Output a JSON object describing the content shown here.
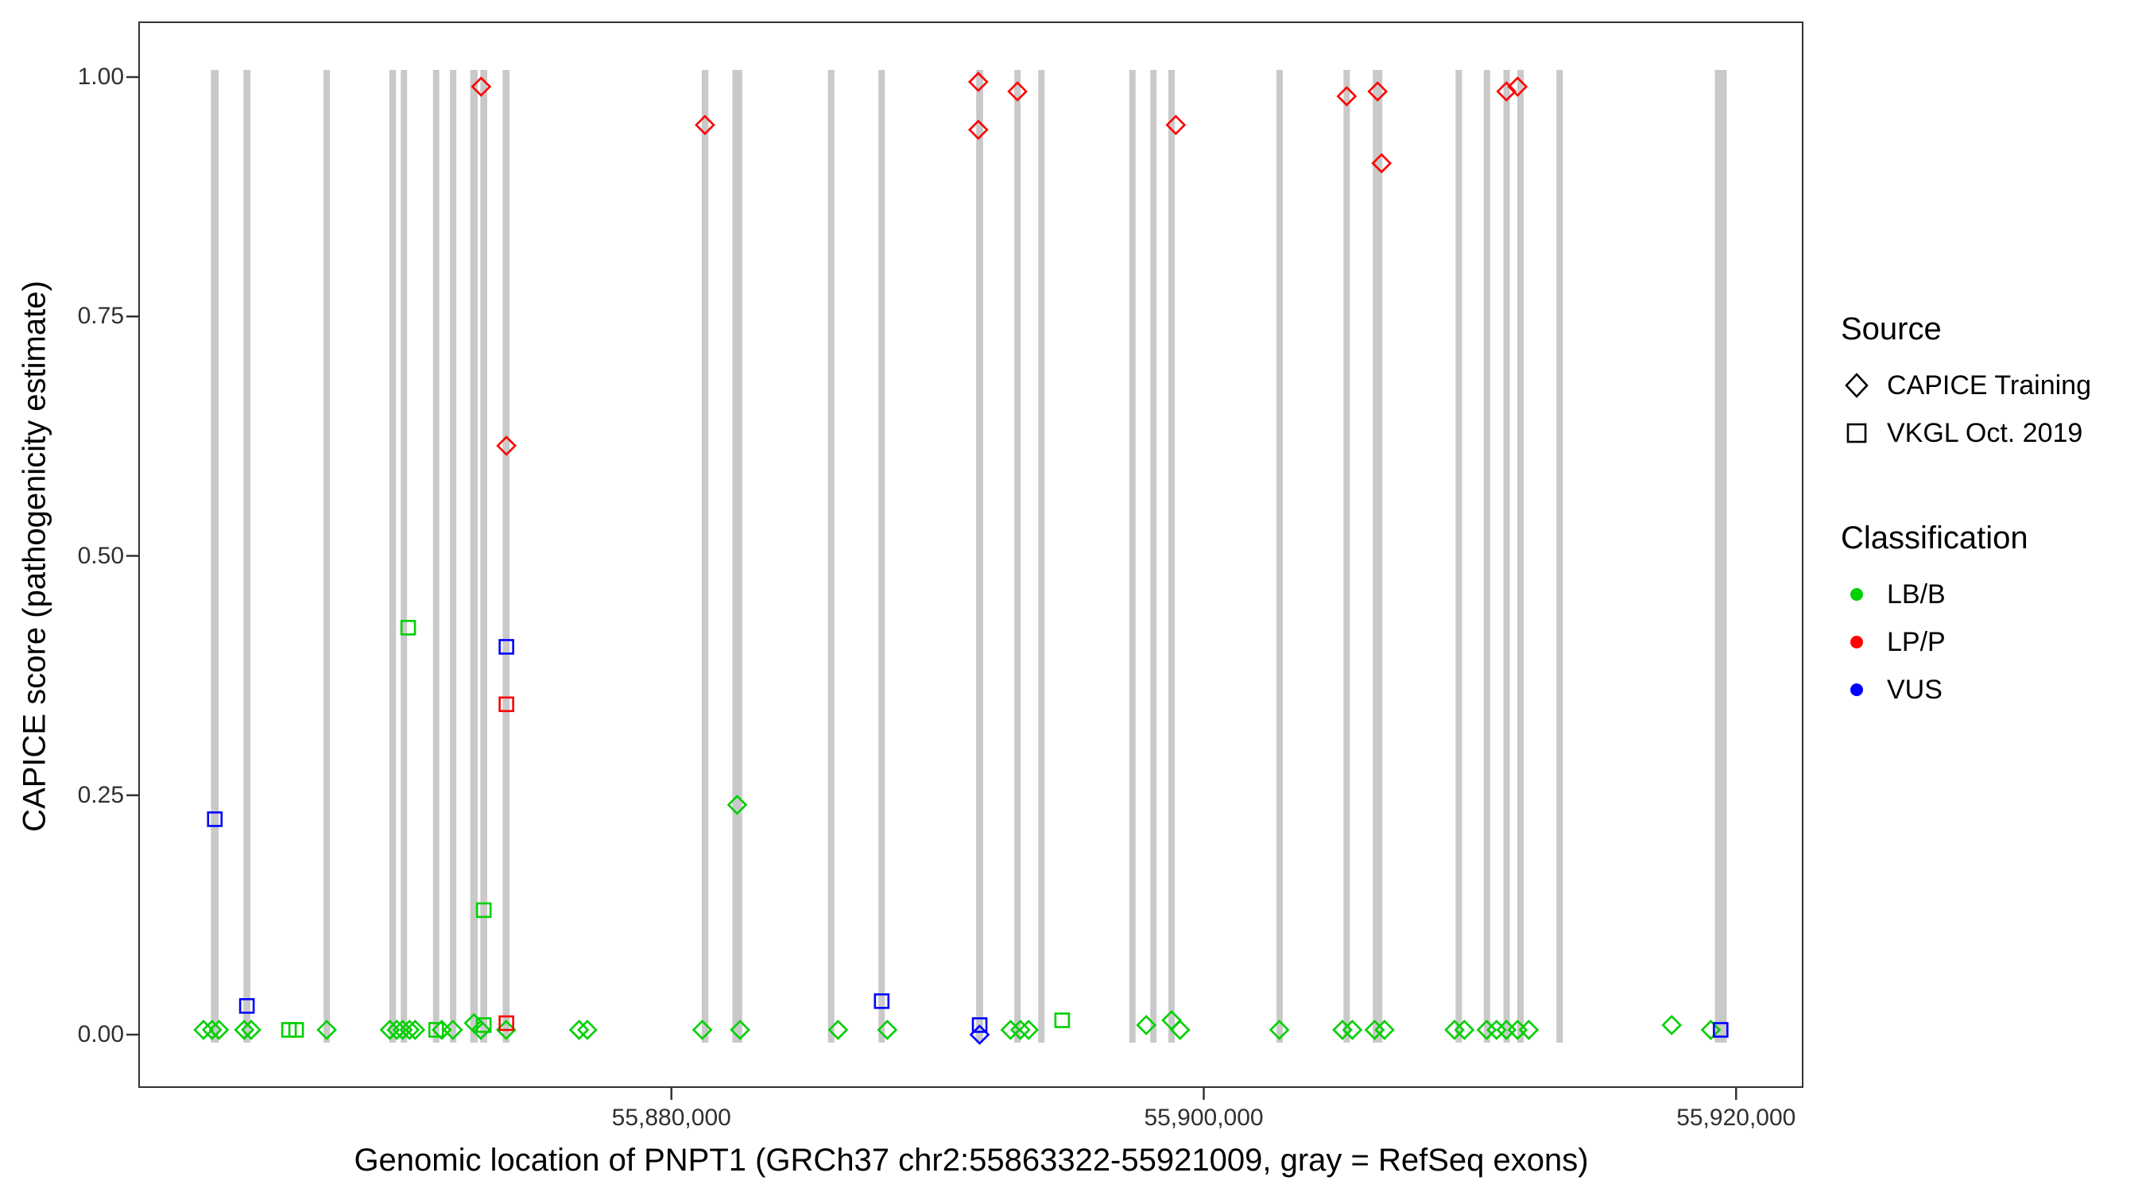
{
  "chart_data": {
    "type": "scatter",
    "title": "",
    "xlabel": "Genomic location of PNPT1 (GRCh37 chr2:55863322-55921009, gray = RefSeq exons)",
    "ylabel": "CAPICE score (pathogenicity estimate)",
    "xlim": [
      55860000,
      55922500
    ],
    "ylim": [
      0,
      1
    ],
    "grid": "off",
    "legend_position": "right",
    "x_ticks": {
      "values": [
        55880000,
        55900000,
        55920000
      ],
      "labels": [
        "55,880,000",
        "55,900,000",
        "55,920,000"
      ]
    },
    "y_ticks": {
      "values": [
        1.0,
        0.75,
        0.5,
        0.25,
        0.0
      ],
      "labels": [
        "1.00",
        "0.75",
        "0.50",
        "0.25",
        "0.00"
      ]
    },
    "colors": {
      "LB/B": "#00D000",
      "LP/P": "#FF0000",
      "VUS": "#0000FF",
      "exon": "#C9C9C9"
    },
    "legend": {
      "source": {
        "title": "Source",
        "items": [
          {
            "label": "CAPICE Training",
            "shape": "diamond"
          },
          {
            "label": "VKGL Oct. 2019",
            "shape": "square"
          }
        ]
      },
      "classification": {
        "title": "Classification",
        "items": [
          {
            "label": "LB/B",
            "color": "#00D000"
          },
          {
            "label": "LP/P",
            "color": "#FF0000"
          },
          {
            "label": "VUS",
            "color": "#0000FF"
          }
        ]
      }
    },
    "exons": [
      [
        55862700,
        55862990
      ],
      [
        55863920,
        55864180
      ],
      [
        55866930,
        55867170
      ],
      [
        55869400,
        55869650
      ],
      [
        55869830,
        55870060
      ],
      [
        55871040,
        55871270
      ],
      [
        55871680,
        55871900
      ],
      [
        55872440,
        55872720
      ],
      [
        55872820,
        55873080
      ],
      [
        55873660,
        55873920
      ],
      [
        55881140,
        55881390
      ],
      [
        55882290,
        55882660
      ],
      [
        55885880,
        55886120
      ],
      [
        55887780,
        55888010
      ],
      [
        55891450,
        55891710
      ],
      [
        55892880,
        55893120
      ],
      [
        55893780,
        55894010
      ],
      [
        55897200,
        55897430
      ],
      [
        55897990,
        55898220
      ],
      [
        55898670,
        55898910
      ],
      [
        55902730,
        55902960
      ],
      [
        55905250,
        55905490
      ],
      [
        55906350,
        55906710
      ],
      [
        55909460,
        55909700
      ],
      [
        55910520,
        55910750
      ],
      [
        55911260,
        55911480
      ],
      [
        55911780,
        55912010
      ],
      [
        55913250,
        55913490
      ],
      [
        55919200,
        55919650
      ]
    ],
    "series": [
      {
        "name": "CAPICE Training / LB/B",
        "source": "CAPICE Training",
        "classification": "LB/B",
        "shape": "diamond",
        "points": [
          [
            55862420,
            0.005
          ],
          [
            55862740,
            0.005
          ],
          [
            55863000,
            0.005
          ],
          [
            55863950,
            0.005
          ],
          [
            55864210,
            0.005
          ],
          [
            55867050,
            0.005
          ],
          [
            55869420,
            0.005
          ],
          [
            55869680,
            0.005
          ],
          [
            55869900,
            0.005
          ],
          [
            55870160,
            0.005
          ],
          [
            55870370,
            0.005
          ],
          [
            55871370,
            0.005
          ],
          [
            55871790,
            0.005
          ],
          [
            55872580,
            0.012
          ],
          [
            55872840,
            0.005
          ],
          [
            55873790,
            0.005
          ],
          [
            55876530,
            0.005
          ],
          [
            55876840,
            0.005
          ],
          [
            55881160,
            0.005
          ],
          [
            55882470,
            0.24
          ],
          [
            55882580,
            0.005
          ],
          [
            55886260,
            0.005
          ],
          [
            55888110,
            0.005
          ],
          [
            55892740,
            0.005
          ],
          [
            55893110,
            0.005
          ],
          [
            55893420,
            0.005
          ],
          [
            55897840,
            0.01
          ],
          [
            55898790,
            0.015
          ],
          [
            55899110,
            0.005
          ],
          [
            55902840,
            0.005
          ],
          [
            55905210,
            0.005
          ],
          [
            55905580,
            0.005
          ],
          [
            55906420,
            0.005
          ],
          [
            55906790,
            0.005
          ],
          [
            55909420,
            0.005
          ],
          [
            55909790,
            0.005
          ],
          [
            55910630,
            0.005
          ],
          [
            55911000,
            0.005
          ],
          [
            55911370,
            0.005
          ],
          [
            55911790,
            0.005
          ],
          [
            55912210,
            0.005
          ],
          [
            55917580,
            0.01
          ],
          [
            55919050,
            0.005
          ]
        ]
      },
      {
        "name": "VKGL Oct. 2019 / LB/B",
        "source": "VKGL Oct. 2019",
        "classification": "LB/B",
        "shape": "square",
        "points": [
          [
            55870110,
            0.425
          ],
          [
            55872950,
            0.13
          ],
          [
            55865630,
            0.005
          ],
          [
            55865900,
            0.005
          ],
          [
            55871160,
            0.005
          ],
          [
            55872950,
            0.01
          ],
          [
            55894680,
            0.015
          ]
        ]
      },
      {
        "name": "CAPICE Training / VUS",
        "source": "CAPICE Training",
        "classification": "VUS",
        "shape": "diamond",
        "points": [
          [
            55891580,
            0.0
          ]
        ]
      },
      {
        "name": "VKGL Oct. 2019 / VUS",
        "source": "VKGL Oct. 2019",
        "classification": "VUS",
        "shape": "square",
        "points": [
          [
            55862845,
            0.225
          ],
          [
            55864050,
            0.03
          ],
          [
            55873800,
            0.405
          ],
          [
            55887900,
            0.035
          ],
          [
            55891580,
            0.01
          ],
          [
            55919420,
            0.005
          ]
        ]
      },
      {
        "name": "VKGL Oct. 2019 / LP/P",
        "source": "VKGL Oct. 2019",
        "classification": "LP/P",
        "shape": "square",
        "points": [
          [
            55873800,
            0.345
          ],
          [
            55873800,
            0.012
          ]
        ]
      },
      {
        "name": "CAPICE Training / LP/P",
        "source": "CAPICE Training",
        "classification": "LP/P",
        "shape": "diamond",
        "points": [
          [
            55872850,
            0.99
          ],
          [
            55873800,
            0.615
          ],
          [
            55881260,
            0.95
          ],
          [
            55891530,
            0.995
          ],
          [
            55891530,
            0.945
          ],
          [
            55893000,
            0.985
          ],
          [
            55898950,
            0.95
          ],
          [
            55905370,
            0.98
          ],
          [
            55906530,
            0.985
          ],
          [
            55906680,
            0.91
          ],
          [
            55911370,
            0.985
          ],
          [
            55911790,
            0.99
          ]
        ]
      }
    ]
  }
}
